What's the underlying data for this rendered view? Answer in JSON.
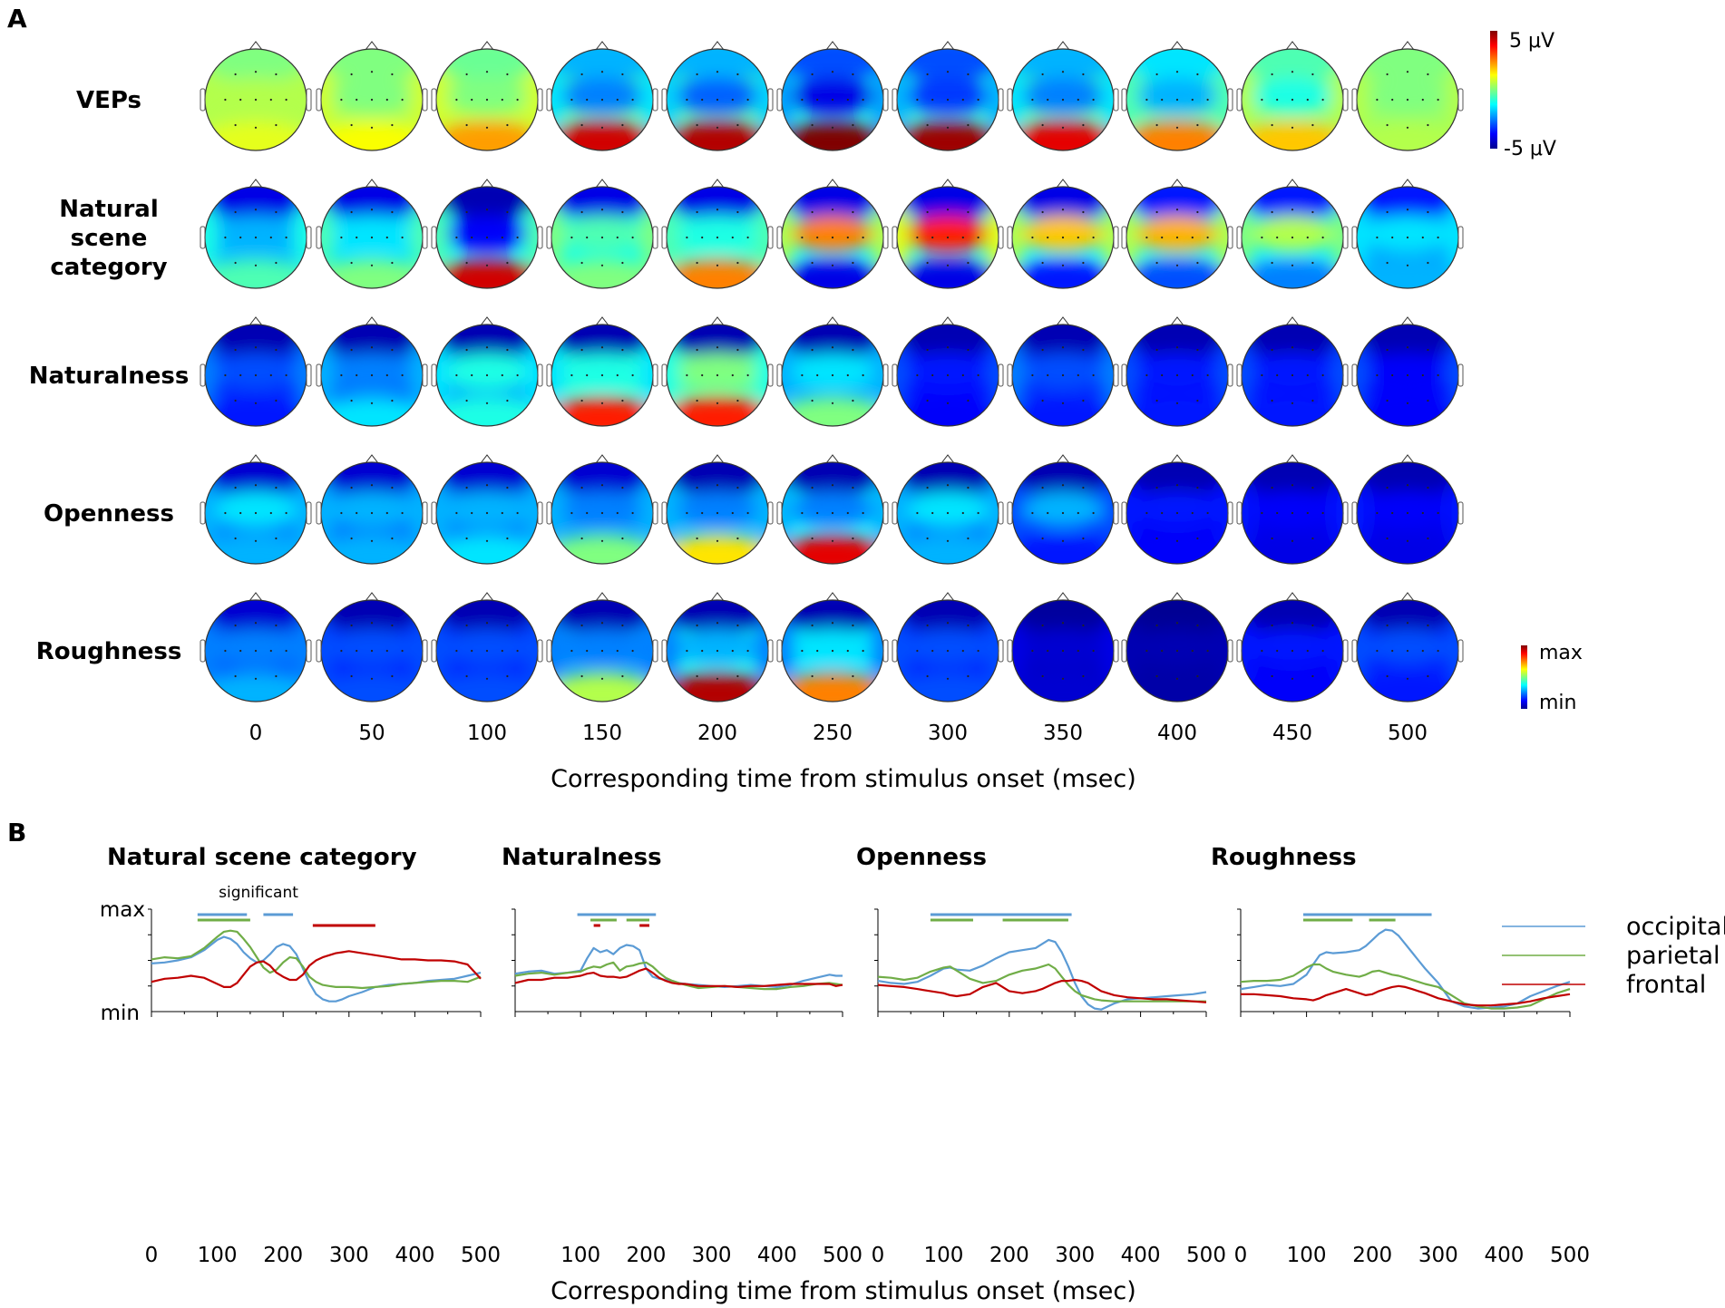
{
  "panel_a": {
    "letter": "A",
    "rows": [
      "VEPs",
      "Natural scene category",
      "Naturalness",
      "Openness",
      "Roughness"
    ],
    "times": [
      0,
      50,
      100,
      150,
      200,
      250,
      300,
      350,
      400,
      450,
      500
    ],
    "xlabel": "Corresponding time from stimulus onset (msec)",
    "colorbar_voltage": {
      "top": "5 μV",
      "bottom": "-5 μV"
    },
    "colorbar_relative": {
      "top": "max",
      "bottom": "min"
    },
    "maps": [
      [
        {
          "f": 0.5,
          "o": 0.6,
          "c": 0.55,
          "s": 0.55
        },
        {
          "f": 0.5,
          "o": 0.62,
          "c": 0.5,
          "s": 0.58
        },
        {
          "f": 0.48,
          "o": 0.72,
          "c": 0.5,
          "s": 0.58
        },
        {
          "f": 0.3,
          "o": 0.92,
          "c": 0.25,
          "s": 0.35
        },
        {
          "f": 0.3,
          "o": 0.95,
          "c": 0.22,
          "s": 0.33
        },
        {
          "f": 0.2,
          "o": 1.0,
          "c": 0.1,
          "s": 0.28
        },
        {
          "f": 0.2,
          "o": 0.97,
          "c": 0.18,
          "s": 0.3
        },
        {
          "f": 0.3,
          "o": 0.9,
          "c": 0.25,
          "s": 0.35
        },
        {
          "f": 0.35,
          "o": 0.75,
          "c": 0.3,
          "s": 0.45
        },
        {
          "f": 0.45,
          "o": 0.68,
          "c": 0.4,
          "s": 0.55
        },
        {
          "f": 0.5,
          "o": 0.55,
          "c": 0.5,
          "s": 0.55
        }
      ],
      [
        {
          "f": 0.1,
          "o": 0.45,
          "c": 0.3,
          "s": 0.4
        },
        {
          "f": 0.1,
          "o": 0.5,
          "c": 0.35,
          "s": 0.45
        },
        {
          "f": 0.05,
          "o": 0.92,
          "c": 0.12,
          "s": 0.45
        },
        {
          "f": 0.1,
          "o": 0.5,
          "c": 0.45,
          "s": 0.5
        },
        {
          "f": 0.1,
          "o": 0.75,
          "c": 0.4,
          "s": 0.45
        },
        {
          "f": 0.1,
          "o": 0.1,
          "c": 0.75,
          "s": 0.55
        },
        {
          "f": 0.1,
          "o": 0.1,
          "c": 0.85,
          "s": 0.6
        },
        {
          "f": 0.1,
          "o": 0.15,
          "c": 0.68,
          "s": 0.55
        },
        {
          "f": 0.15,
          "o": 0.2,
          "c": 0.7,
          "s": 0.55
        },
        {
          "f": 0.15,
          "o": 0.25,
          "c": 0.55,
          "s": 0.5
        },
        {
          "f": 0.15,
          "o": 0.3,
          "c": 0.35,
          "s": 0.35
        }
      ],
      [
        {
          "f": 0.05,
          "o": 0.15,
          "c": 0.2,
          "s": 0.25
        },
        {
          "f": 0.05,
          "o": 0.35,
          "c": 0.25,
          "s": 0.3
        },
        {
          "f": 0.05,
          "o": 0.4,
          "c": 0.4,
          "s": 0.35
        },
        {
          "f": 0.05,
          "o": 0.85,
          "c": 0.4,
          "s": 0.35
        },
        {
          "f": 0.05,
          "o": 0.85,
          "c": 0.5,
          "s": 0.4
        },
        {
          "f": 0.05,
          "o": 0.5,
          "c": 0.35,
          "s": 0.3
        },
        {
          "f": 0.05,
          "o": 0.12,
          "c": 0.15,
          "s": 0.2
        },
        {
          "f": 0.05,
          "o": 0.15,
          "c": 0.2,
          "s": 0.25
        },
        {
          "f": 0.05,
          "o": 0.15,
          "c": 0.15,
          "s": 0.2
        },
        {
          "f": 0.05,
          "o": 0.15,
          "c": 0.15,
          "s": 0.2
        },
        {
          "f": 0.05,
          "o": 0.12,
          "c": 0.12,
          "s": 0.2
        }
      ],
      [
        {
          "f": 0.08,
          "o": 0.3,
          "c": 0.35,
          "s": 0.3
        },
        {
          "f": 0.08,
          "o": 0.3,
          "c": 0.3,
          "s": 0.3
        },
        {
          "f": 0.08,
          "o": 0.35,
          "c": 0.3,
          "s": 0.3
        },
        {
          "f": 0.08,
          "o": 0.5,
          "c": 0.25,
          "s": 0.3
        },
        {
          "f": 0.05,
          "o": 0.65,
          "c": 0.25,
          "s": 0.3
        },
        {
          "f": 0.05,
          "o": 0.9,
          "c": 0.25,
          "s": 0.3
        },
        {
          "f": 0.05,
          "o": 0.3,
          "c": 0.35,
          "s": 0.3
        },
        {
          "f": 0.05,
          "o": 0.15,
          "c": 0.3,
          "s": 0.2
        },
        {
          "f": 0.05,
          "o": 0.12,
          "c": 0.15,
          "s": 0.15
        },
        {
          "f": 0.05,
          "o": 0.1,
          "c": 0.12,
          "s": 0.15
        },
        {
          "f": 0.05,
          "o": 0.1,
          "c": 0.12,
          "s": 0.15
        }
      ],
      [
        {
          "f": 0.08,
          "o": 0.3,
          "c": 0.25,
          "s": 0.25
        },
        {
          "f": 0.05,
          "o": 0.2,
          "c": 0.2,
          "s": 0.2
        },
        {
          "f": 0.05,
          "o": 0.2,
          "c": 0.2,
          "s": 0.2
        },
        {
          "f": 0.05,
          "o": 0.55,
          "c": 0.25,
          "s": 0.25
        },
        {
          "f": 0.05,
          "o": 0.95,
          "c": 0.3,
          "s": 0.25
        },
        {
          "f": 0.05,
          "o": 0.75,
          "c": 0.35,
          "s": 0.25
        },
        {
          "f": 0.05,
          "o": 0.2,
          "c": 0.2,
          "s": 0.2
        },
        {
          "f": 0.03,
          "o": 0.08,
          "c": 0.08,
          "s": 0.1
        },
        {
          "f": 0.02,
          "o": 0.04,
          "c": 0.05,
          "s": 0.05
        },
        {
          "f": 0.05,
          "o": 0.12,
          "c": 0.15,
          "s": 0.15
        },
        {
          "f": 0.05,
          "o": 0.15,
          "c": 0.2,
          "s": 0.2
        }
      ]
    ]
  },
  "panel_b": {
    "letter": "B",
    "xlabel": "Corresponding time from stimulus onset (msec)",
    "significant_label": "significant",
    "legend": [
      {
        "name": "occipital",
        "color": "#5b9bd5"
      },
      {
        "name": "parietal",
        "color": "#70ad47"
      },
      {
        "name": "frontal",
        "color": "#c00000"
      }
    ]
  },
  "chart_data": [
    {
      "type": "line",
      "title": "Natural scene category",
      "xlabel": "Corresponding time from stimulus onset (msec)",
      "ylabel_top": "max",
      "ylabel_bottom": "min",
      "xlim": [
        0,
        500
      ],
      "ylim": [
        0,
        1
      ],
      "x_ticks": [
        0,
        100,
        200,
        300,
        400,
        500
      ],
      "x": [
        0,
        20,
        40,
        60,
        80,
        100,
        110,
        120,
        130,
        140,
        150,
        160,
        170,
        180,
        190,
        200,
        210,
        220,
        230,
        240,
        250,
        260,
        270,
        280,
        290,
        300,
        320,
        340,
        360,
        380,
        400,
        420,
        440,
        460,
        480,
        500
      ],
      "series": [
        {
          "name": "occipital",
          "values": [
            0.47,
            0.48,
            0.5,
            0.53,
            0.6,
            0.7,
            0.73,
            0.71,
            0.66,
            0.58,
            0.52,
            0.48,
            0.5,
            0.56,
            0.63,
            0.66,
            0.64,
            0.56,
            0.42,
            0.28,
            0.17,
            0.12,
            0.1,
            0.1,
            0.12,
            0.15,
            0.19,
            0.24,
            0.26,
            0.27,
            0.28,
            0.3,
            0.31,
            0.32,
            0.35,
            0.38
          ]
        },
        {
          "name": "parietal",
          "values": [
            0.51,
            0.53,
            0.52,
            0.54,
            0.62,
            0.73,
            0.78,
            0.79,
            0.78,
            0.71,
            0.63,
            0.53,
            0.43,
            0.38,
            0.41,
            0.48,
            0.53,
            0.52,
            0.44,
            0.34,
            0.29,
            0.26,
            0.25,
            0.24,
            0.24,
            0.24,
            0.23,
            0.24,
            0.25,
            0.27,
            0.28,
            0.29,
            0.3,
            0.3,
            0.29,
            0.34
          ]
        },
        {
          "name": "frontal",
          "values": [
            0.29,
            0.32,
            0.33,
            0.35,
            0.33,
            0.27,
            0.24,
            0.24,
            0.28,
            0.36,
            0.44,
            0.48,
            0.49,
            0.45,
            0.38,
            0.34,
            0.31,
            0.31,
            0.36,
            0.45,
            0.5,
            0.53,
            0.55,
            0.57,
            0.58,
            0.59,
            0.57,
            0.55,
            0.53,
            0.51,
            0.51,
            0.5,
            0.5,
            0.49,
            0.46,
            0.32
          ]
        }
      ],
      "significance": [
        {
          "series": "occipital",
          "row": 0,
          "start": 70,
          "end": 145
        },
        {
          "series": "occipital",
          "row": 0,
          "start": 170,
          "end": 215
        },
        {
          "series": "parietal",
          "row": 1,
          "start": 70,
          "end": 150
        },
        {
          "series": "frontal",
          "row": 2,
          "start": 245,
          "end": 340
        }
      ]
    },
    {
      "type": "line",
      "title": "Naturalness",
      "xlim": [
        0,
        500
      ],
      "ylim": [
        0,
        1
      ],
      "x_ticks": [
        100,
        200,
        300,
        400,
        500
      ],
      "x": [
        0,
        20,
        40,
        60,
        80,
        100,
        110,
        120,
        130,
        140,
        150,
        160,
        170,
        180,
        190,
        200,
        210,
        220,
        230,
        240,
        250,
        260,
        280,
        300,
        320,
        340,
        360,
        380,
        400,
        420,
        440,
        460,
        480,
        490,
        500
      ],
      "series": [
        {
          "name": "occipital",
          "values": [
            0.37,
            0.39,
            0.4,
            0.37,
            0.38,
            0.4,
            0.52,
            0.62,
            0.58,
            0.6,
            0.56,
            0.62,
            0.65,
            0.64,
            0.6,
            0.42,
            0.34,
            0.32,
            0.31,
            0.3,
            0.28,
            0.27,
            0.26,
            0.25,
            0.24,
            0.25,
            0.26,
            0.25,
            0.24,
            0.26,
            0.3,
            0.33,
            0.36,
            0.35,
            0.35
          ]
        },
        {
          "name": "parietal",
          "values": [
            0.35,
            0.37,
            0.38,
            0.36,
            0.38,
            0.39,
            0.42,
            0.44,
            0.43,
            0.46,
            0.48,
            0.4,
            0.44,
            0.45,
            0.47,
            0.48,
            0.44,
            0.38,
            0.33,
            0.3,
            0.28,
            0.26,
            0.23,
            0.24,
            0.25,
            0.24,
            0.23,
            0.22,
            0.22,
            0.24,
            0.25,
            0.27,
            0.28,
            0.27,
            0.26
          ]
        },
        {
          "name": "frontal",
          "values": [
            0.28,
            0.31,
            0.31,
            0.33,
            0.33,
            0.35,
            0.37,
            0.38,
            0.35,
            0.34,
            0.34,
            0.33,
            0.34,
            0.37,
            0.4,
            0.42,
            0.38,
            0.33,
            0.3,
            0.28,
            0.27,
            0.27,
            0.25,
            0.25,
            0.25,
            0.24,
            0.25,
            0.25,
            0.26,
            0.27,
            0.27,
            0.27,
            0.27,
            0.25,
            0.26
          ]
        }
      ],
      "significance": [
        {
          "series": "occipital",
          "row": 0,
          "start": 95,
          "end": 215
        },
        {
          "series": "parietal",
          "row": 1,
          "start": 115,
          "end": 155
        },
        {
          "series": "parietal",
          "row": 1,
          "start": 170,
          "end": 205
        },
        {
          "series": "frontal",
          "row": 2,
          "start": 120,
          "end": 130
        },
        {
          "series": "frontal",
          "row": 2,
          "start": 190,
          "end": 205
        }
      ]
    },
    {
      "type": "line",
      "title": "Openness",
      "xlim": [
        0,
        500
      ],
      "ylim": [
        0,
        1
      ],
      "x_ticks": [
        0,
        100,
        200,
        300,
        400,
        500
      ],
      "x": [
        0,
        20,
        40,
        60,
        80,
        100,
        110,
        120,
        140,
        160,
        180,
        200,
        220,
        240,
        250,
        260,
        270,
        280,
        290,
        300,
        310,
        320,
        330,
        340,
        360,
        380,
        400,
        420,
        440,
        460,
        480,
        500
      ],
      "series": [
        {
          "name": "occipital",
          "values": [
            0.3,
            0.28,
            0.27,
            0.29,
            0.35,
            0.42,
            0.43,
            0.41,
            0.4,
            0.45,
            0.52,
            0.58,
            0.6,
            0.62,
            0.66,
            0.7,
            0.68,
            0.58,
            0.44,
            0.28,
            0.15,
            0.07,
            0.03,
            0.02,
            0.08,
            0.12,
            0.13,
            0.14,
            0.15,
            0.16,
            0.17,
            0.19
          ]
        },
        {
          "name": "parietal",
          "values": [
            0.34,
            0.33,
            0.31,
            0.33,
            0.39,
            0.43,
            0.44,
            0.4,
            0.32,
            0.28,
            0.3,
            0.36,
            0.4,
            0.42,
            0.44,
            0.46,
            0.42,
            0.34,
            0.26,
            0.2,
            0.16,
            0.14,
            0.12,
            0.11,
            0.1,
            0.1,
            0.1,
            0.1,
            0.1,
            0.1,
            0.1,
            0.1
          ]
        },
        {
          "name": "frontal",
          "values": [
            0.26,
            0.25,
            0.24,
            0.22,
            0.2,
            0.18,
            0.16,
            0.15,
            0.17,
            0.24,
            0.28,
            0.2,
            0.18,
            0.2,
            0.22,
            0.25,
            0.28,
            0.3,
            0.3,
            0.31,
            0.3,
            0.28,
            0.24,
            0.2,
            0.16,
            0.14,
            0.13,
            0.12,
            0.12,
            0.11,
            0.1,
            0.09
          ]
        }
      ],
      "significance": [
        {
          "series": "occipital",
          "row": 0,
          "start": 80,
          "end": 295
        },
        {
          "series": "parietal",
          "row": 1,
          "start": 80,
          "end": 145
        },
        {
          "series": "parietal",
          "row": 1,
          "start": 190,
          "end": 290
        }
      ]
    },
    {
      "type": "line",
      "title": "Roughness",
      "xlim": [
        0,
        500
      ],
      "ylim": [
        0,
        1
      ],
      "x_ticks": [
        0,
        100,
        200,
        300,
        400,
        500
      ],
      "x": [
        0,
        20,
        40,
        60,
        80,
        100,
        110,
        120,
        130,
        140,
        160,
        180,
        190,
        200,
        210,
        220,
        230,
        240,
        250,
        260,
        270,
        280,
        300,
        320,
        340,
        360,
        380,
        400,
        420,
        440,
        460,
        480,
        500
      ],
      "series": [
        {
          "name": "occipital",
          "values": [
            0.22,
            0.24,
            0.26,
            0.25,
            0.27,
            0.36,
            0.46,
            0.55,
            0.58,
            0.57,
            0.58,
            0.6,
            0.64,
            0.7,
            0.76,
            0.8,
            0.79,
            0.74,
            0.66,
            0.58,
            0.5,
            0.42,
            0.28,
            0.1,
            0.05,
            0.03,
            0.04,
            0.05,
            0.08,
            0.15,
            0.2,
            0.25,
            0.29
          ]
        },
        {
          "name": "parietal",
          "values": [
            0.29,
            0.3,
            0.3,
            0.31,
            0.35,
            0.43,
            0.46,
            0.46,
            0.42,
            0.39,
            0.36,
            0.34,
            0.36,
            0.39,
            0.4,
            0.38,
            0.36,
            0.35,
            0.33,
            0.31,
            0.29,
            0.27,
            0.24,
            0.16,
            0.08,
            0.05,
            0.03,
            0.03,
            0.04,
            0.06,
            0.12,
            0.18,
            0.22
          ]
        },
        {
          "name": "frontal",
          "values": [
            0.17,
            0.17,
            0.16,
            0.15,
            0.13,
            0.12,
            0.11,
            0.13,
            0.16,
            0.18,
            0.22,
            0.18,
            0.16,
            0.17,
            0.2,
            0.22,
            0.24,
            0.25,
            0.24,
            0.22,
            0.2,
            0.18,
            0.13,
            0.1,
            0.07,
            0.06,
            0.06,
            0.07,
            0.08,
            0.1,
            0.13,
            0.15,
            0.17
          ]
        }
      ],
      "significance": [
        {
          "series": "occipital",
          "row": 0,
          "start": 95,
          "end": 290
        },
        {
          "series": "parietal",
          "row": 1,
          "start": 95,
          "end": 170
        },
        {
          "series": "parietal",
          "row": 1,
          "start": 195,
          "end": 235
        }
      ]
    }
  ]
}
